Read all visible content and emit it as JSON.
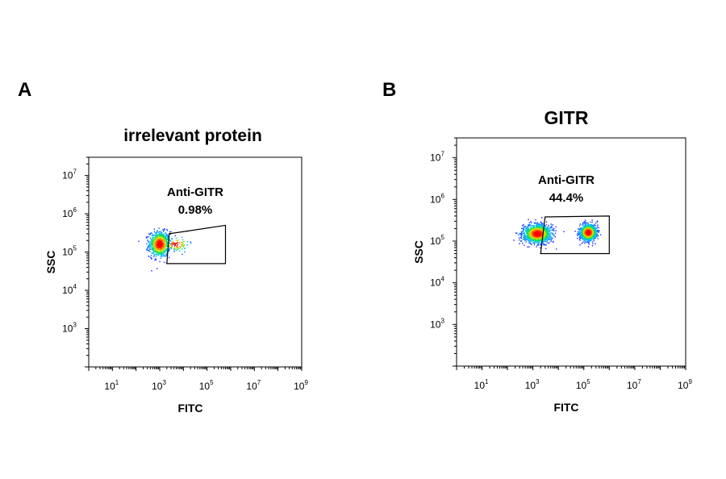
{
  "chart_data": [
    {
      "type": "scatter",
      "panel_label": "A",
      "title": "irrelevant protein",
      "xlabel": "FITC",
      "ylabel": "SSC",
      "xscale": "log",
      "yscale": "log",
      "xlim": [
        1.0,
        1000000000.0
      ],
      "ylim": [
        100.0,
        30000000.0
      ],
      "xticks": [
        "10^1",
        "10^3",
        "10^5",
        "10^7",
        "10^9"
      ],
      "yticks": [
        "10^3",
        "10^4",
        "10^5",
        "10^6",
        "10^7"
      ],
      "gate": {
        "name": "Anti-GITR",
        "percent": "0.98%",
        "polygon": [
          [
            2500,
            300000.0
          ],
          [
            600000.0,
            500000.0
          ],
          [
            600000.0,
            50000.0
          ],
          [
            2000,
            50000.0
          ]
        ]
      },
      "populations": [
        {
          "center": [
            1000,
            160000.0
          ],
          "spread_decades": [
            0.4,
            0.3
          ],
          "weight": 0.9
        },
        {
          "center": [
            5000,
            160000.0
          ],
          "spread_decades": [
            0.5,
            0.18
          ],
          "weight": 0.1
        }
      ]
    },
    {
      "type": "scatter",
      "panel_label": "B",
      "title": "GITR",
      "xlabel": "FITC",
      "ylabel": "SSC",
      "xscale": "log",
      "yscale": "log",
      "xlim": [
        1.0,
        1000000000.0
      ],
      "ylim": [
        100.0,
        30000000.0
      ],
      "xticks": [
        "10^1",
        "10^3",
        "10^5",
        "10^7",
        "10^9"
      ],
      "yticks": [
        "10^3",
        "10^4",
        "10^5",
        "10^6",
        "10^7"
      ],
      "gate": {
        "name": "Anti-GITR",
        "percent": "44.4%",
        "polygon": [
          [
            3000,
            380000.0
          ],
          [
            1000000.0,
            400000.0
          ],
          [
            1000000.0,
            50000.0
          ],
          [
            2000,
            50000.0
          ]
        ]
      },
      "populations": [
        {
          "center": [
            1500,
            150000.0
          ],
          "spread_decades": [
            0.5,
            0.2
          ],
          "weight": 0.55
        },
        {
          "center": [
            150000.0,
            160000.0
          ],
          "spread_decades": [
            0.3,
            0.18
          ],
          "weight": 0.45
        }
      ]
    }
  ]
}
